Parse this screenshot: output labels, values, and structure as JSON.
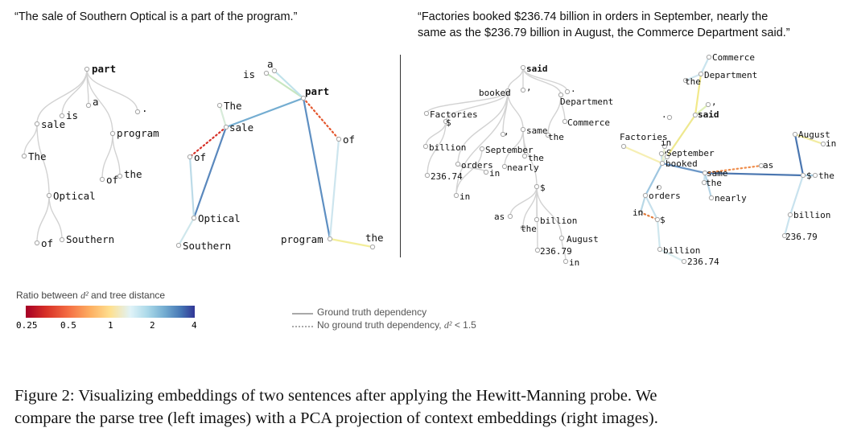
{
  "sentence_left": "“The sale of Southern Optical is a part of the program.”",
  "sentence_right_line1": "“Factories booked $236.74 billion in orders in September, nearly the",
  "sentence_right_line2": "same as the $236.79 billion in August, the Commerce Department said.”",
  "legend": {
    "colorbar_title_prefix": "Ratio between ",
    "colorbar_title_symbol": "d²",
    "colorbar_title_suffix": " and tree distance",
    "colorbar_ticks": [
      "0.25",
      "0.5",
      "1",
      "2",
      "4"
    ],
    "colorbar_tick_colors": [
      "#a50026",
      "#e87a3c",
      "#b8b0a0",
      "#7fa9d1",
      "#313695"
    ],
    "solid_label": "Ground truth dependency",
    "dashed_label_prefix": "No ground truth dependency, ",
    "dashed_label_symbol": "d²",
    "dashed_label_suffix": " < 1.5"
  },
  "caption_line1": "Figure 2: Visualizing embeddings of two sentences after applying the Hewitt-Manning probe. We",
  "caption_line2": "compare the parse tree (left images) with a PCA projection of context embeddings (right images).",
  "panels": {
    "tree1": {
      "nodes": [
        {
          "id": "part",
          "label": "part",
          "bold": true
        },
        {
          "id": "is",
          "label": "is"
        },
        {
          "id": "a",
          "label": "a"
        },
        {
          "id": "dot",
          "label": "."
        },
        {
          "id": "sale",
          "label": "sale"
        },
        {
          "id": "program",
          "label": "program"
        },
        {
          "id": "The",
          "label": "The"
        },
        {
          "id": "of2",
          "label": "of"
        },
        {
          "id": "the",
          "label": "the"
        },
        {
          "id": "Optical",
          "label": "Optical"
        },
        {
          "id": "of1",
          "label": "of"
        },
        {
          "id": "Southern",
          "label": "Southern"
        }
      ],
      "edges": [
        [
          "part",
          "is"
        ],
        [
          "part",
          "a"
        ],
        [
          "part",
          "dot"
        ],
        [
          "part",
          "sale"
        ],
        [
          "part",
          "program"
        ],
        [
          "sale",
          "The"
        ],
        [
          "sale",
          "Optical"
        ],
        [
          "Optical",
          "of1"
        ],
        [
          "Optical",
          "Southern"
        ],
        [
          "program",
          "of2"
        ],
        [
          "program",
          "the"
        ]
      ]
    },
    "proj1": {
      "nodes": [
        {
          "id": "a",
          "label": "a"
        },
        {
          "id": "is",
          "label": "is"
        },
        {
          "id": "part",
          "label": "part",
          "bold": true
        },
        {
          "id": "The",
          "label": "The"
        },
        {
          "id": "sale",
          "label": "sale"
        },
        {
          "id": "of1",
          "label": "of"
        },
        {
          "id": "of2",
          "label": "of"
        },
        {
          "id": "Optical",
          "label": "Optical"
        },
        {
          "id": "Southern",
          "label": "Southern"
        },
        {
          "id": "program",
          "label": "program"
        },
        {
          "id": "the",
          "label": "the"
        }
      ],
      "edges": [
        {
          "from": "part",
          "to": "is",
          "color": "#c8e6bf"
        },
        {
          "from": "part",
          "to": "a",
          "color": "#bfe2ea"
        },
        {
          "from": "part",
          "to": "sale",
          "color": "#74add1"
        },
        {
          "from": "part",
          "to": "program",
          "color": "#5e8fc2"
        },
        {
          "from": "sale",
          "to": "The",
          "color": "#d7ebd9"
        },
        {
          "from": "sale",
          "to": "Optical",
          "color": "#5a88bd"
        },
        {
          "from": "Optical",
          "to": "of1",
          "color": "#bcdbe8"
        },
        {
          "from": "Optical",
          "to": "Southern",
          "color": "#cfe7ec"
        },
        {
          "from": "program",
          "to": "the",
          "color": "#f3ee9b"
        },
        {
          "from": "program",
          "to": "of2",
          "color": "#cde5ee"
        },
        {
          "from": "sale",
          "to": "of1",
          "color": "#d73027",
          "dashed": true
        },
        {
          "from": "part",
          "to": "of2",
          "color": "#e4572e",
          "dashed": true
        }
      ]
    },
    "tree2": {
      "nodes": [
        {
          "id": "said",
          "label": "said",
          "bold": true
        },
        {
          "id": "booked",
          "label": "booked"
        },
        {
          "id": "comma1",
          "label": ","
        },
        {
          "id": "Department",
          "label": "Department"
        },
        {
          "id": "dot",
          "label": "."
        },
        {
          "id": "Factories",
          "label": "Factories"
        },
        {
          "id": "dollar1",
          "label": "$"
        },
        {
          "id": "comma2",
          "label": ","
        },
        {
          "id": "same",
          "label": "same"
        },
        {
          "id": "the1",
          "label": "the"
        },
        {
          "id": "Commerce",
          "label": "Commerce"
        },
        {
          "id": "billion1",
          "label": "billion"
        },
        {
          "id": "September",
          "label": "September"
        },
        {
          "id": "the2",
          "label": "the"
        },
        {
          "id": "orders",
          "label": "orders"
        },
        {
          "id": "nearly",
          "label": "nearly"
        },
        {
          "id": "n23674",
          "label": "236.74"
        },
        {
          "id": "in1",
          "label": "in"
        },
        {
          "id": "in2",
          "label": "in"
        },
        {
          "id": "dollar2",
          "label": "$"
        },
        {
          "id": "as",
          "label": "as"
        },
        {
          "id": "billion2",
          "label": "billion"
        },
        {
          "id": "the3",
          "label": "the"
        },
        {
          "id": "August",
          "label": "August"
        },
        {
          "id": "n23679",
          "label": "236.79"
        },
        {
          "id": "in3",
          "label": "in"
        }
      ],
      "edges": [
        [
          "said",
          "booked"
        ],
        [
          "said",
          "comma1"
        ],
        [
          "said",
          "Department"
        ],
        [
          "said",
          "dot"
        ],
        [
          "booked",
          "Factories"
        ],
        [
          "booked",
          "dollar1"
        ],
        [
          "booked",
          "comma2"
        ],
        [
          "booked",
          "same"
        ],
        [
          "booked",
          "in2"
        ],
        [
          "Department",
          "the1"
        ],
        [
          "Department",
          "Commerce"
        ],
        [
          "dollar1",
          "billion1"
        ],
        [
          "dollar1",
          "n23674"
        ],
        [
          "in2",
          "September"
        ],
        [
          "same",
          "the2"
        ],
        [
          "same",
          "nearly"
        ],
        [
          "same",
          "dollar2"
        ],
        [
          "booked",
          "orders"
        ],
        [
          "orders",
          "in1"
        ],
        [
          "dollar2",
          "as"
        ],
        [
          "dollar2",
          "billion2"
        ],
        [
          "dollar2",
          "the3"
        ],
        [
          "dollar2",
          "August"
        ],
        [
          "dollar2",
          "n23679"
        ],
        [
          "August",
          "in3"
        ]
      ]
    },
    "proj2": {
      "nodes": [
        {
          "id": "Commerce",
          "label": "Commerce"
        },
        {
          "id": "the1",
          "label": "the"
        },
        {
          "id": "Department",
          "label": "Department"
        },
        {
          "id": "comma1",
          "label": ","
        },
        {
          "id": "dot",
          "label": "."
        },
        {
          "id": "said",
          "label": "said",
          "bold": true
        },
        {
          "id": "Factories",
          "label": "Factories"
        },
        {
          "id": "in2",
          "label": "in"
        },
        {
          "id": "comma2",
          "label": ","
        },
        {
          "id": "September",
          "label": "September"
        },
        {
          "id": "booked",
          "label": "booked"
        },
        {
          "id": "same",
          "label": "same"
        },
        {
          "id": "as",
          "label": "as"
        },
        {
          "id": "the2",
          "label": "the"
        },
        {
          "id": "orders",
          "label": "orders"
        },
        {
          "id": "nearly",
          "label": "nearly"
        },
        {
          "id": "in1",
          "label": "in"
        },
        {
          "id": "dollar1",
          "label": "$"
        },
        {
          "id": "billion1",
          "label": "billion"
        },
        {
          "id": "n23674",
          "label": "236.74"
        },
        {
          "id": "August",
          "label": "August"
        },
        {
          "id": "in3",
          "label": "in"
        },
        {
          "id": "dollar2",
          "label": "$"
        },
        {
          "id": "the3",
          "label": "the"
        },
        {
          "id": "comma3",
          "label": ","
        },
        {
          "id": "billion2",
          "label": "billion"
        },
        {
          "id": "n23679",
          "label": "236.79"
        }
      ],
      "edges": [
        {
          "from": "said",
          "to": "comma1",
          "color": "#dfefb8"
        },
        {
          "from": "said",
          "to": "Department",
          "color": "#f2e98a"
        },
        {
          "from": "Department",
          "to": "the1",
          "color": "#cfe5ee"
        },
        {
          "from": "Department",
          "to": "Commerce",
          "color": "#c9e4ee"
        },
        {
          "from": "said",
          "to": "booked",
          "color": "#eee88f"
        },
        {
          "from": "booked",
          "to": "Factories",
          "color": "#f6efb3"
        },
        {
          "from": "booked",
          "to": "September",
          "color": "#c3dfe9"
        },
        {
          "from": "booked",
          "to": "comma2",
          "color": "#d3e9e6"
        },
        {
          "from": "booked",
          "to": "in2",
          "color": "#eaf1d0"
        },
        {
          "from": "booked",
          "to": "same",
          "color": "#6b97c7"
        },
        {
          "from": "booked",
          "to": "orders",
          "color": "#9ec6e0"
        },
        {
          "from": "orders",
          "to": "in1",
          "color": "#b8d8e6"
        },
        {
          "from": "same",
          "to": "the2",
          "color": "#c7e1ec"
        },
        {
          "from": "same",
          "to": "nearly",
          "color": "#b5d4e6"
        },
        {
          "from": "same",
          "to": "dollar2",
          "color": "#4a76b0"
        },
        {
          "from": "dollar2",
          "to": "August",
          "color": "#4a76b0"
        },
        {
          "from": "dollar2",
          "to": "the3",
          "color": "#a8cde3"
        },
        {
          "from": "dollar2",
          "to": "billion2",
          "color": "#c8e2ee"
        },
        {
          "from": "billion2",
          "to": "n23679",
          "color": "#c9e3ee"
        },
        {
          "from": "August",
          "to": "in3",
          "color": "#f2eca2"
        },
        {
          "from": "dollar1",
          "to": "billion1",
          "color": "#cfe7ee"
        },
        {
          "from": "billion1",
          "to": "n23674",
          "color": "#d9ecef"
        },
        {
          "from": "orders",
          "to": "dollar1",
          "color": "#c6e0ec"
        },
        {
          "from": "in1",
          "to": "dollar1",
          "color": "#e07a3a",
          "dashed": true
        },
        {
          "from": "same",
          "to": "as",
          "color": "#ef8c4a",
          "dashed": true
        }
      ]
    }
  }
}
